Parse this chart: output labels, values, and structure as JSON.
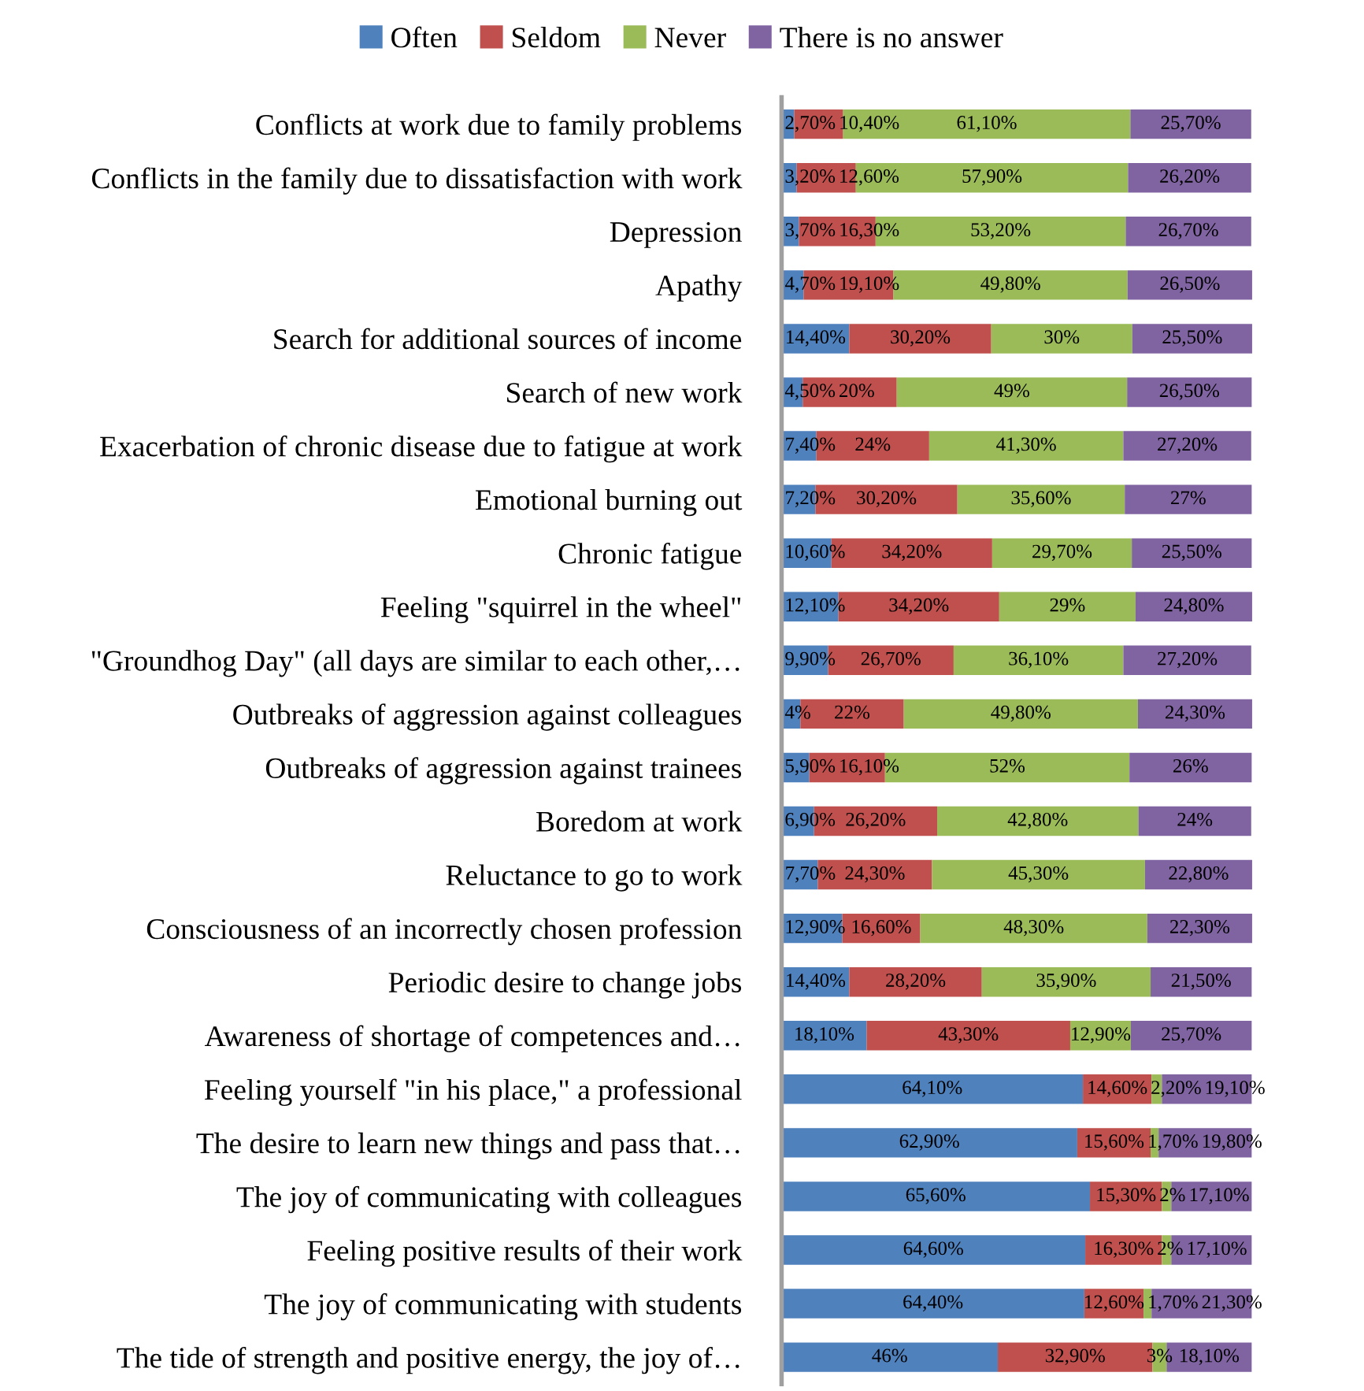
{
  "chart_data": {
    "type": "bar",
    "orientation": "horizontal",
    "stacked": true,
    "legend": "top",
    "grid": false,
    "categories": [
      "Conflicts at work due to family problems",
      "Conflicts in the family due to dissatisfaction with work",
      "Depression",
      "Apathy",
      "Search for additional sources of income",
      "Search of new work",
      "Exacerbation of chronic disease due to fatigue at work",
      "Emotional burning out",
      "Chronic fatigue",
      "Feeling \"squirrel in the wheel\"",
      "\"Groundhog Day\" (all days are similar to each other,…",
      "Outbreaks of aggression against colleagues",
      "Outbreaks of aggression against trainees",
      "Boredom at work",
      "Reluctance to go to work",
      "Consciousness of an incorrectly chosen profession",
      "Periodic desire to change jobs",
      "Awareness of shortage of competences and…",
      "Feeling yourself \"in his place,\" a professional",
      "The desire to learn new things and pass that…",
      "The joy of communicating with colleagues",
      "Feeling positive results of their work",
      "The joy of communicating with students",
      "The tide of strength and positive energy, the joy of…"
    ],
    "series": [
      {
        "name": "Often",
        "color": "#4f81bd",
        "values": [
          2.7,
          3.2,
          3.7,
          4.7,
          14.4,
          4.5,
          7.4,
          7.2,
          10.6,
          12.1,
          9.9,
          4,
          5.9,
          6.9,
          7.7,
          12.9,
          14.4,
          18.1,
          64.1,
          62.9,
          65.6,
          64.6,
          64.4,
          46
        ],
        "value_labels": [
          "2,70%",
          "3,20%",
          "3,70%",
          "4,70%",
          "14,40%",
          "4,50%",
          "7,40%",
          "7,20%",
          "10,60%",
          "12,10%",
          "9,90%",
          "4%",
          "5,90%",
          "6,90%",
          "7,70%",
          "12,90%",
          "14,40%",
          "18,10%",
          "64,10%",
          "62,90%",
          "65,60%",
          "64,60%",
          "64,40%",
          "46%"
        ]
      },
      {
        "name": "Seldom",
        "color": "#c0504d",
        "values": [
          10.4,
          12.6,
          16.3,
          19.1,
          30.2,
          20,
          24,
          30.2,
          34.2,
          34.2,
          26.7,
          22,
          16.1,
          26.2,
          24.3,
          16.6,
          28.2,
          43.3,
          14.6,
          15.6,
          15.3,
          16.3,
          12.6,
          32.9
        ],
        "value_labels": [
          "10,40%",
          "12,60%",
          "16,30%",
          "19,10%",
          "30,20%",
          "20%",
          "24%",
          "30,20%",
          "34,20%",
          "34,20%",
          "26,70%",
          "22%",
          "16,10%",
          "26,20%",
          "24,30%",
          "16,60%",
          "28,20%",
          "43,30%",
          "14,60%",
          "15,60%",
          "15,30%",
          "16,30%",
          "12,60%",
          "32,90%"
        ]
      },
      {
        "name": "Never",
        "color": "#9bbb59",
        "values": [
          61.1,
          57.9,
          53.2,
          49.8,
          30,
          49,
          41.3,
          35.6,
          29.7,
          29,
          36.1,
          49.8,
          52,
          42.8,
          45.3,
          48.3,
          35.9,
          12.9,
          2.2,
          1.7,
          2,
          2,
          1.7,
          3
        ],
        "value_labels": [
          "61,10%",
          "57,90%",
          "53,20%",
          "49,80%",
          "30%",
          "49%",
          "41,30%",
          "35,60%",
          "29,70%",
          "29%",
          "36,10%",
          "49,80%",
          "52%",
          "42,80%",
          "45,30%",
          "48,30%",
          "35,90%",
          "12,90%",
          "2,20%",
          "1,70%",
          "2%",
          "2%",
          "1,70%",
          "3%"
        ]
      },
      {
        "name": "There is no answer",
        "color": "#8064a2",
        "values": [
          25.7,
          26.2,
          26.7,
          26.5,
          25.5,
          26.5,
          27.2,
          27,
          25.5,
          24.8,
          27.2,
          24.3,
          26,
          24,
          22.8,
          22.3,
          21.5,
          25.7,
          19.1,
          19.8,
          17.1,
          17.1,
          21.3,
          18.1
        ],
        "value_labels": [
          "25,70%",
          "26,20%",
          "26,70%",
          "26,50%",
          "25,50%",
          "26,50%",
          "27,20%",
          "27%",
          "25,50%",
          "24,80%",
          "27,20%",
          "24,30%",
          "26%",
          "24%",
          "22,80%",
          "22,30%",
          "21,50%",
          "25,70%",
          "19,10%",
          "19,80%",
          "17,10%",
          "17,10%",
          "21,30%",
          "18,10%"
        ]
      }
    ]
  }
}
